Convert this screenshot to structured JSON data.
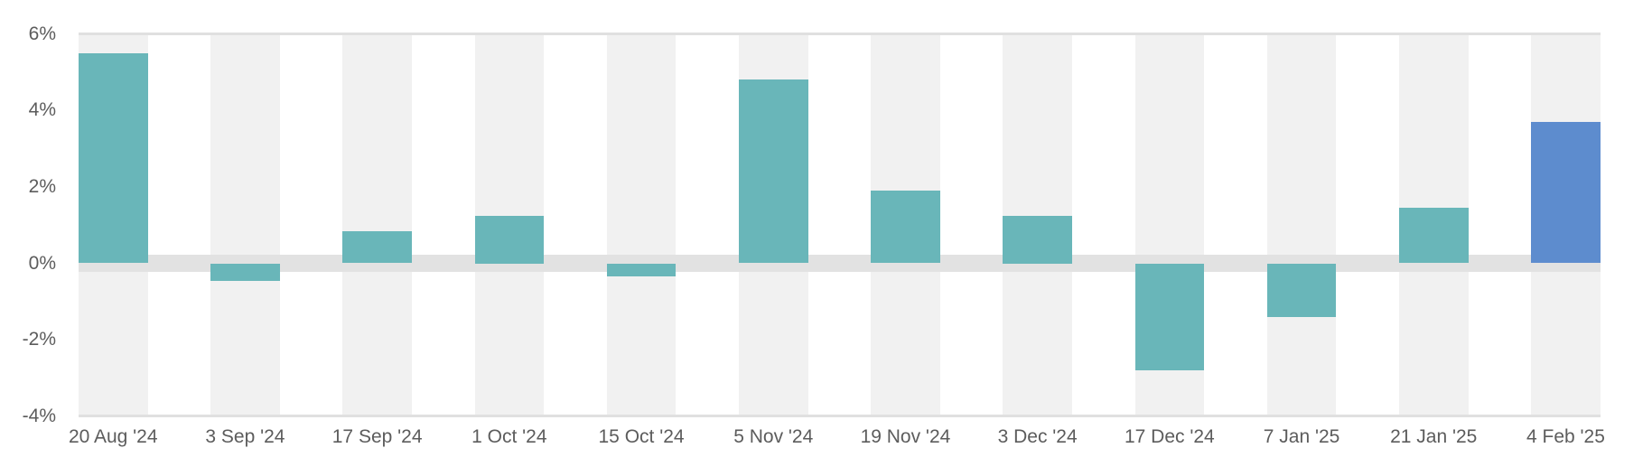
{
  "chart_data": {
    "type": "bar",
    "title": "",
    "categories": [
      "20 Aug '24",
      "3 Sep '24",
      "17 Sep '24",
      "1 Oct '24",
      "15 Oct '24",
      "5 Nov '24",
      "19 Nov '24",
      "3 Dec '24",
      "17 Dec '24",
      "7 Jan '25",
      "21 Jan '25",
      "4 Feb '25"
    ],
    "values": [
      5.5,
      -0.45,
      0.85,
      1.25,
      -0.35,
      4.8,
      1.9,
      1.25,
      -2.8,
      -1.4,
      1.45,
      3.7
    ],
    "unit": "%",
    "yticks": [
      "6%",
      "4%",
      "2%",
      "0%",
      "-2%",
      "-4%"
    ],
    "ytick_values": [
      6,
      4,
      2,
      0,
      -2,
      -4
    ],
    "ylim": [
      -4,
      6
    ],
    "xlabel": "",
    "ylabel": "",
    "legend": "none",
    "grid": "horizontal gridlines at top (6%), bottom (-4%) and a thick zero band only; alternating light-gray vertical background stripes behind each bar",
    "bar_colors": [
      "#69b6b9",
      "#69b6b9",
      "#69b6b9",
      "#69b6b9",
      "#69b6b9",
      "#69b6b9",
      "#69b6b9",
      "#69b6b9",
      "#69b6b9",
      "#69b6b9",
      "#69b6b9",
      "#5d8cce"
    ],
    "colors": {
      "bar_default": "#69b6b9",
      "bar_highlight": "#5d8cce",
      "column_stripe": "#f1f1f1",
      "zero_band": "#e2e2e2",
      "gridline": "#e0e0e0",
      "axis_label_text": "#5c5c5c",
      "background": "#ffffff"
    }
  }
}
